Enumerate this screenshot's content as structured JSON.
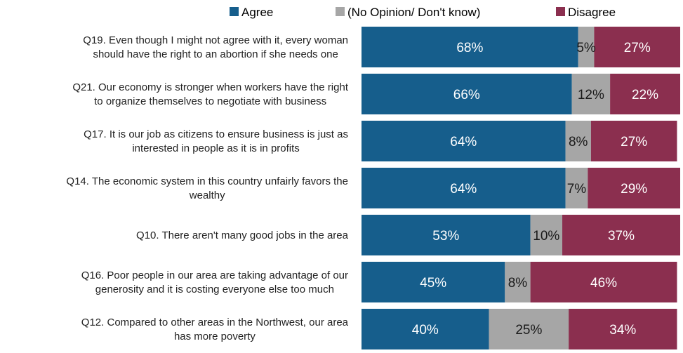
{
  "chart_data": {
    "type": "bar",
    "orientation": "horizontal",
    "stacked": true,
    "legend_position": "top",
    "grid": false,
    "xlim": [
      0,
      100
    ],
    "categories": [
      "Q19. Even though I might not  agree with it, every woman\nshould have the right to an abortion if she needs one",
      "Q21. Our economy is stronger when workers have the right\nto organize themselves to negotiate with business",
      "Q17. It is our job as citizens to ensure business is just as\ninterested in people as it is in profits",
      "Q14. The economic system in this country unfairly favors the\nwealthy",
      "Q10. There aren't many good jobs in the area",
      "Q16. Poor people in our area are taking advantage of our\ngenerosity and it is costing everyone else too much",
      "Q12. Compared to other areas in the Northwest, our area\nhas more poverty"
    ],
    "series": [
      {
        "name": "Agree",
        "color": "#165e8c",
        "values": [
          68,
          66,
          64,
          64,
          53,
          45,
          40
        ],
        "labels": [
          "68%",
          "66%",
          "64%",
          "64%",
          "53%",
          "45%",
          "40%"
        ]
      },
      {
        "name": "(No Opinion/ Don't know)",
        "color": "#a6a6a6",
        "values": [
          5,
          12,
          8,
          7,
          10,
          8,
          25
        ],
        "labels": [
          "5%",
          "12%",
          "8%",
          "7%",
          "10%",
          "8%",
          "25%"
        ]
      },
      {
        "name": "Disagree",
        "color": "#8b2f4f",
        "values": [
          27,
          22,
          27,
          29,
          37,
          46,
          34
        ],
        "labels": [
          "27%",
          "22%",
          "27%",
          "29%",
          "37%",
          "46%",
          "34%"
        ]
      }
    ]
  }
}
